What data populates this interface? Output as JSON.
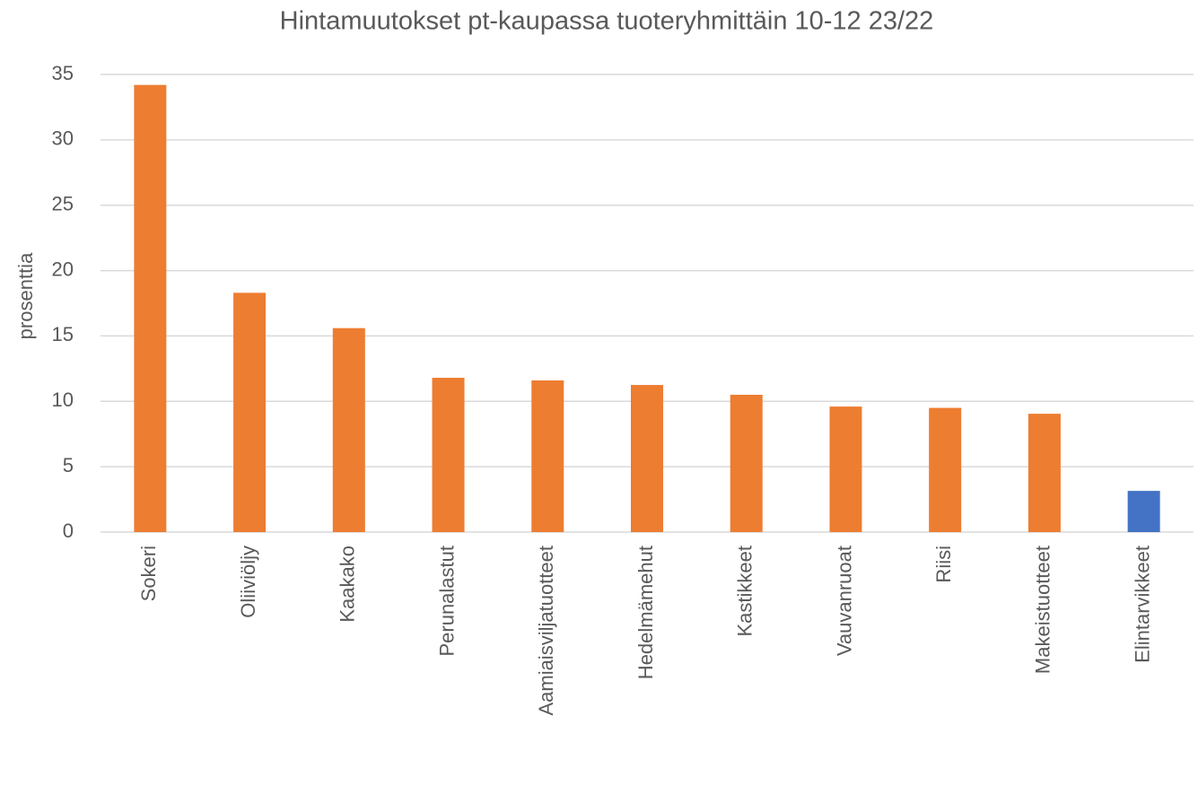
{
  "chart_data": {
    "type": "bar",
    "title": "Hintamuutokset pt-kaupassa tuoteryhmittäin 10-12 23/22",
    "y_label": "prosenttia",
    "categories": [
      "Sokeri",
      "Oliiviöljy",
      "Kaakako",
      "Perunalastut",
      "Aamiaisviljatuotteet",
      "Hedelmämehut",
      "Kastikkeet",
      "Vauvanruoat",
      "Riisi",
      "Makeistuotteet",
      "Elintarvikkeet"
    ],
    "values": [
      34.2,
      18.3,
      15.6,
      11.8,
      11.6,
      11.25,
      10.5,
      9.6,
      9.5,
      9.05,
      3.15
    ],
    "colors": [
      "#ed7d31",
      "#ed7d31",
      "#ed7d31",
      "#ed7d31",
      "#ed7d31",
      "#ed7d31",
      "#ed7d31",
      "#ed7d31",
      "#ed7d31",
      "#ed7d31",
      "#4472c4"
    ],
    "ylim": [
      0,
      35
    ],
    "yticks": [
      0,
      5,
      10,
      15,
      20,
      25,
      30,
      35
    ],
    "grid": true
  }
}
